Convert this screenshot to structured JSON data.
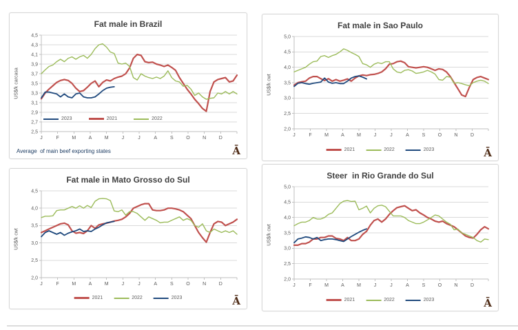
{
  "logo_glyph": "Ā",
  "colors": {
    "red": "#C0504D",
    "green": "#9BBB59",
    "blue": "#1F497D",
    "grid": "#D9D9D9",
    "axis": "#BFBFBF",
    "tick_text": "#595959",
    "title_text": "#3F3F3F",
    "footnote_text": "#17375E",
    "logo": "#4E2A15"
  },
  "months": [
    "J",
    "F",
    "M",
    "A",
    "M",
    "J",
    "J",
    "A",
    "S",
    "O",
    "N",
    "D"
  ],
  "chart_data": [
    {
      "type": "line",
      "title": "Fat male in Brazil",
      "ylabel": "US$/k carcasa",
      "ylim": [
        2.5,
        4.5
      ],
      "yticks": [
        {
          "label": "4,5",
          "value": 4.5
        },
        {
          "label": "4,3",
          "value": 4.3
        },
        {
          "label": "4,1",
          "value": 4.1
        },
        {
          "label": "3,9",
          "value": 3.9
        },
        {
          "label": "3,7",
          "value": 3.7
        },
        {
          "label": "3,5",
          "value": 3.5
        },
        {
          "label": "3,3",
          "value": 3.3
        },
        {
          "label": "3,1",
          "value": 3.1
        },
        {
          "label": "2,9",
          "value": 2.9
        },
        {
          "label": "2,7",
          "value": 2.7
        },
        {
          "label": "2,5",
          "value": 2.5
        }
      ],
      "legend_order": [
        "2023",
        "2021",
        "2022"
      ],
      "legend_position": "inside",
      "footnote": "Average  of main beef exporting states",
      "series": [
        {
          "name": "2021",
          "color_key": "red",
          "values": [
            3.18,
            3.3,
            3.38,
            3.45,
            3.52,
            3.56,
            3.58,
            3.56,
            3.5,
            3.4,
            3.33,
            3.35,
            3.42,
            3.5,
            3.55,
            3.43,
            3.52,
            3.57,
            3.55,
            3.6,
            3.63,
            3.65,
            3.7,
            3.82,
            4.02,
            4.1,
            4.08,
            3.95,
            3.93,
            3.94,
            3.9,
            3.88,
            3.85,
            3.88,
            3.83,
            3.77,
            3.62,
            3.5,
            3.38,
            3.28,
            3.17,
            3.08,
            2.98,
            2.92,
            3.33,
            3.53,
            3.58,
            3.6,
            3.62,
            3.53,
            3.55,
            3.67
          ]
        },
        {
          "name": "2022",
          "color_key": "green",
          "values": [
            3.7,
            3.78,
            3.85,
            3.88,
            3.95,
            4.0,
            3.95,
            4.02,
            4.05,
            4.0,
            4.05,
            4.08,
            4.02,
            4.1,
            4.22,
            4.3,
            4.32,
            4.25,
            4.15,
            4.12,
            3.92,
            3.9,
            3.92,
            3.85,
            3.62,
            3.57,
            3.7,
            3.65,
            3.62,
            3.6,
            3.63,
            3.6,
            3.65,
            3.76,
            3.62,
            3.55,
            3.53,
            3.44,
            3.46,
            3.38,
            3.25,
            3.3,
            3.22,
            3.17,
            3.19,
            3.2,
            3.3,
            3.28,
            3.33,
            3.28,
            3.33,
            3.28
          ]
        },
        {
          "name": "2023",
          "color_key": "blue",
          "values": [
            3.2,
            3.32,
            3.32,
            3.3,
            3.28,
            3.22,
            3.28,
            3.22,
            3.2,
            3.28,
            3.3,
            3.22,
            3.2,
            3.2,
            3.22,
            3.28,
            3.35,
            3.4,
            3.42,
            3.43
          ]
        }
      ]
    },
    {
      "type": "line",
      "title": "Fat male in Sao Paulo",
      "ylabel": "US$/k cwt",
      "ylim": [
        2.0,
        5.0
      ],
      "yticks": [
        {
          "label": "5,0",
          "value": 5.0
        },
        {
          "label": "4,5",
          "value": 4.5
        },
        {
          "label": "4,0",
          "value": 4.0
        },
        {
          "label": "3,5",
          "value": 3.5
        },
        {
          "label": "3,0",
          "value": 3.0
        },
        {
          "label": "2,5",
          "value": 2.5
        },
        {
          "label": "2,0",
          "value": 2.0
        }
      ],
      "legend_order": [
        "2021",
        "2022",
        "2023"
      ],
      "legend_position": "below",
      "footnote": "",
      "series": [
        {
          "name": "2021",
          "color_key": "red",
          "values": [
            3.42,
            3.5,
            3.53,
            3.55,
            3.65,
            3.7,
            3.7,
            3.63,
            3.57,
            3.63,
            3.55,
            3.6,
            3.55,
            3.58,
            3.62,
            3.55,
            3.65,
            3.72,
            3.75,
            3.73,
            3.76,
            3.77,
            3.8,
            3.85,
            3.95,
            4.1,
            4.12,
            4.18,
            4.2,
            4.15,
            4.02,
            4.0,
            3.98,
            4.0,
            4.02,
            4.0,
            3.95,
            3.9,
            3.95,
            3.93,
            3.85,
            3.7,
            3.5,
            3.3,
            3.1,
            3.05,
            3.35,
            3.6,
            3.67,
            3.7,
            3.65,
            3.6
          ]
        },
        {
          "name": "2022",
          "color_key": "green",
          "values": [
            3.85,
            3.9,
            3.95,
            4.0,
            4.1,
            4.18,
            4.2,
            4.35,
            4.38,
            4.32,
            4.38,
            4.42,
            4.5,
            4.6,
            4.55,
            4.48,
            4.42,
            4.35,
            4.12,
            4.08,
            4.0,
            4.1,
            4.15,
            4.12,
            4.18,
            4.18,
            3.95,
            3.85,
            3.82,
            3.9,
            3.92,
            3.88,
            3.8,
            3.82,
            3.85,
            3.9,
            3.85,
            3.78,
            3.6,
            3.58,
            3.7,
            3.68,
            3.48,
            3.5,
            3.47,
            3.43,
            3.4,
            3.5,
            3.55,
            3.58,
            3.55,
            3.47
          ]
        },
        {
          "name": "2023",
          "color_key": "blue",
          "values": [
            3.38,
            3.48,
            3.5,
            3.47,
            3.45,
            3.48,
            3.5,
            3.52,
            3.65,
            3.52,
            3.48,
            3.5,
            3.47,
            3.47,
            3.55,
            3.65,
            3.7,
            3.72,
            3.68,
            3.62
          ]
        }
      ]
    },
    {
      "type": "line",
      "title": "Fat male in Mato Grosso do Sul",
      "ylabel": "US$/k cwt",
      "ylim": [
        2.0,
        4.5
      ],
      "yticks": [
        {
          "label": "4,5",
          "value": 4.5
        },
        {
          "label": "4,0",
          "value": 4.0
        },
        {
          "label": "3,5",
          "value": 3.5
        },
        {
          "label": "3,0",
          "value": 3.0
        },
        {
          "label": "2,5",
          "value": 2.5
        },
        {
          "label": "2,0",
          "value": 2.0
        }
      ],
      "legend_order": [
        "2021",
        "2022",
        "2023"
      ],
      "legend_position": "below",
      "footnote": "",
      "series": [
        {
          "name": "2021",
          "color_key": "red",
          "values": [
            3.3,
            3.35,
            3.4,
            3.45,
            3.5,
            3.55,
            3.57,
            3.52,
            3.35,
            3.28,
            3.3,
            3.27,
            3.35,
            3.5,
            3.42,
            3.52,
            3.55,
            3.57,
            3.6,
            3.63,
            3.65,
            3.68,
            3.75,
            3.85,
            4.0,
            4.05,
            4.1,
            4.13,
            4.13,
            3.95,
            3.93,
            3.93,
            3.95,
            4.0,
            4.0,
            3.98,
            3.95,
            3.9,
            3.8,
            3.7,
            3.5,
            3.3,
            3.15,
            3.02,
            3.3,
            3.55,
            3.62,
            3.6,
            3.5,
            3.55,
            3.6,
            3.68
          ]
        },
        {
          "name": "2022",
          "color_key": "green",
          "values": [
            3.73,
            3.77,
            3.77,
            3.78,
            3.93,
            3.95,
            3.95,
            4.0,
            4.05,
            4.0,
            4.07,
            4.0,
            4.08,
            4.02,
            4.2,
            4.27,
            4.28,
            4.27,
            4.22,
            3.92,
            3.9,
            3.95,
            3.8,
            3.9,
            3.9,
            3.85,
            3.75,
            3.65,
            3.75,
            3.7,
            3.65,
            3.58,
            3.6,
            3.6,
            3.65,
            3.7,
            3.75,
            3.65,
            3.7,
            3.65,
            3.5,
            3.45,
            3.55,
            3.35,
            3.3,
            3.4,
            3.35,
            3.3,
            3.35,
            3.3,
            3.35,
            3.25
          ]
        },
        {
          "name": "2023",
          "color_key": "blue",
          "values": [
            3.18,
            3.3,
            3.35,
            3.3,
            3.25,
            3.3,
            3.22,
            3.28,
            3.32,
            3.35,
            3.4,
            3.33,
            3.35,
            3.33,
            3.4,
            3.45,
            3.52,
            3.58,
            3.6,
            3.62
          ]
        }
      ]
    },
    {
      "type": "line",
      "title": "Steer  in Rio Grande do Sul",
      "ylabel": "US$/k cwt",
      "ylim": [
        2.0,
        5.0
      ],
      "yticks": [
        {
          "label": "5,0",
          "value": 5.0
        },
        {
          "label": "4,5",
          "value": 4.5
        },
        {
          "label": "4,0",
          "value": 4.0
        },
        {
          "label": "3,5",
          "value": 3.5
        },
        {
          "label": "3,0",
          "value": 3.0
        },
        {
          "label": "2,5",
          "value": 2.5
        },
        {
          "label": "2,0",
          "value": 2.0
        }
      ],
      "legend_order": [
        "2021",
        "2022",
        "2023"
      ],
      "legend_position": "below",
      "footnote": "",
      "series": [
        {
          "name": "2021",
          "color_key": "red",
          "values": [
            3.1,
            3.1,
            3.15,
            3.15,
            3.2,
            3.3,
            3.3,
            3.35,
            3.35,
            3.4,
            3.4,
            3.32,
            3.3,
            3.25,
            3.35,
            3.25,
            3.25,
            3.3,
            3.45,
            3.55,
            3.75,
            3.9,
            3.95,
            3.85,
            3.95,
            4.1,
            4.22,
            4.32,
            4.35,
            4.38,
            4.3,
            4.22,
            4.25,
            4.15,
            4.08,
            4.0,
            3.95,
            3.88,
            3.85,
            3.88,
            3.8,
            3.75,
            3.7,
            3.6,
            3.5,
            3.4,
            3.35,
            3.33,
            3.45,
            3.6,
            3.7,
            3.63
          ]
        },
        {
          "name": "2022",
          "color_key": "green",
          "values": [
            3.73,
            3.8,
            3.85,
            3.85,
            3.9,
            4.0,
            3.95,
            3.95,
            4.0,
            4.1,
            4.15,
            4.3,
            4.45,
            4.53,
            4.55,
            4.52,
            4.53,
            4.25,
            4.3,
            4.37,
            4.15,
            4.3,
            4.38,
            4.4,
            4.35,
            4.2,
            4.05,
            4.05,
            4.05,
            4.0,
            3.9,
            3.85,
            3.8,
            3.8,
            3.85,
            3.92,
            4.0,
            4.08,
            4.05,
            3.95,
            3.85,
            3.78,
            3.6,
            3.62,
            3.5,
            3.45,
            3.4,
            3.35,
            3.25,
            3.2,
            3.3,
            3.28
          ]
        },
        {
          "name": "2023",
          "color_key": "blue",
          "values": [
            3.18,
            3.3,
            3.33,
            3.37,
            3.35,
            3.3,
            3.35,
            3.25,
            3.28,
            3.3,
            3.3,
            3.28,
            3.25,
            3.22,
            3.3,
            3.38,
            3.45,
            3.52,
            3.58,
            3.63
          ]
        }
      ]
    }
  ]
}
